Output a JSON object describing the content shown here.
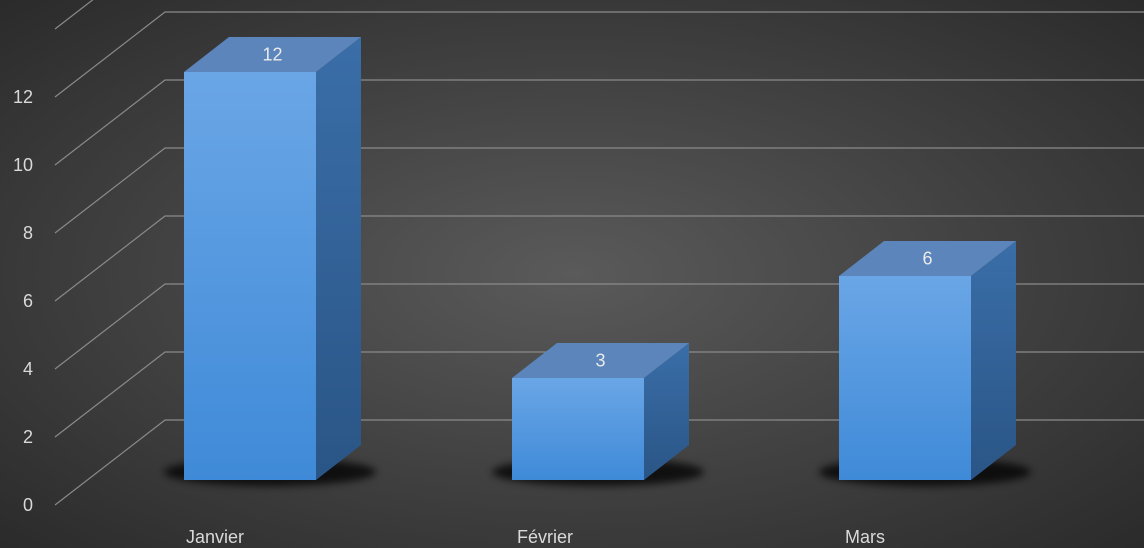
{
  "chart_data": {
    "type": "bar",
    "style": "3d-column",
    "categories": [
      "Janvier",
      "Février",
      "Mars"
    ],
    "values": [
      12,
      3,
      6
    ],
    "data_labels": [
      "12",
      "3",
      "6"
    ],
    "ylim": [
      0,
      12
    ],
    "y_ticks": [
      "0",
      "2",
      "4",
      "6",
      "8",
      "10",
      "12"
    ],
    "grid": true,
    "legend": "none",
    "colors": {
      "background_center": "#5a5a5a",
      "background_edge": "#2b2b2b",
      "bar_front_light": "#6aa6e6",
      "bar_front_dark": "#3f8ad8",
      "bar_side": "#2f5f97",
      "bar_top": "#5b85bb",
      "grid": "#8a8a8a",
      "text": "#d9d9d9"
    }
  }
}
